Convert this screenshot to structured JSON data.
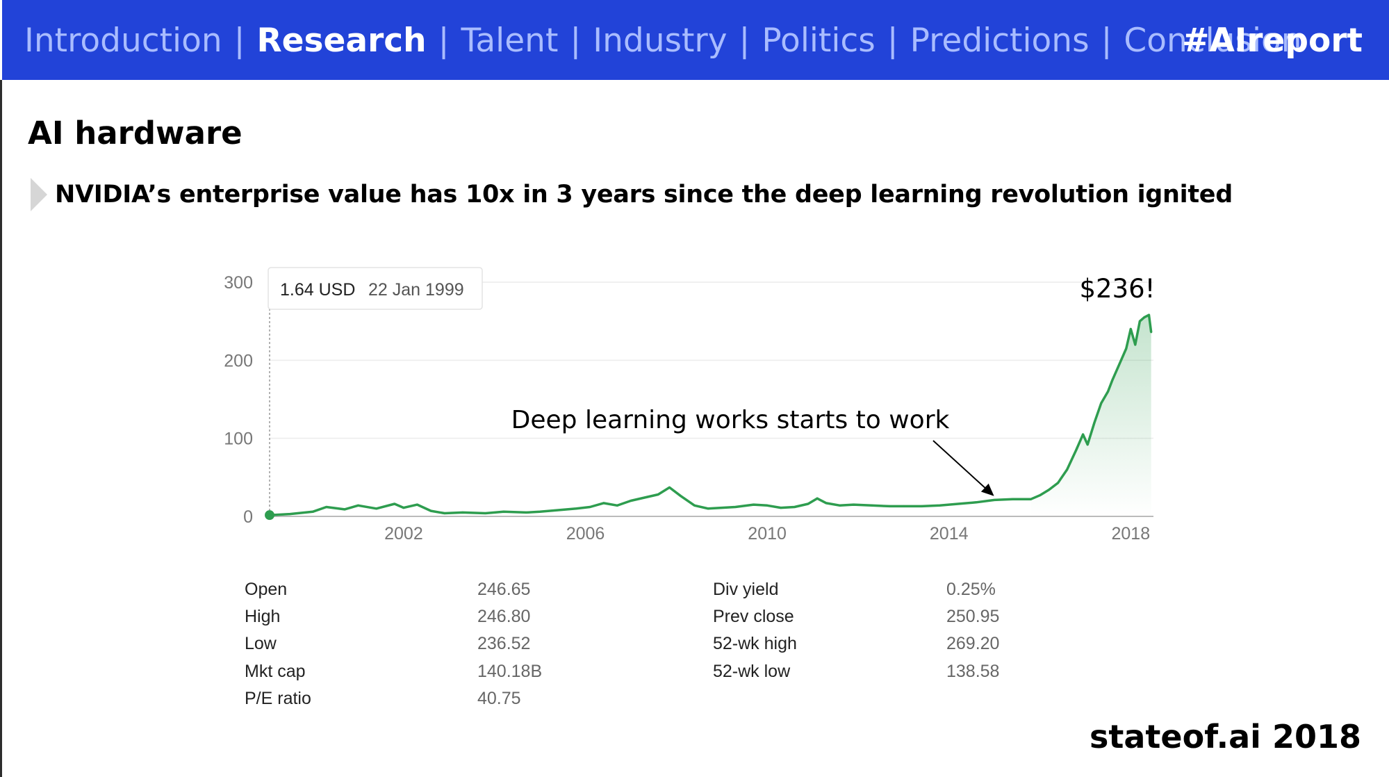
{
  "nav": {
    "items": [
      {
        "label": "Introduction",
        "active": false
      },
      {
        "label": "Research",
        "active": true
      },
      {
        "label": "Talent",
        "active": false
      },
      {
        "label": "Industry",
        "active": false
      },
      {
        "label": "Politics",
        "active": false
      },
      {
        "label": "Predictions",
        "active": false
      },
      {
        "label": "Conclusion",
        "active": false
      }
    ],
    "separator": "|",
    "hashtag": "#AIreport"
  },
  "page": {
    "title": "AI hardware",
    "bullet": "NVIDIA’s enterprise value has 10x in 3 years since the deep learning revolution ignited"
  },
  "colors": {
    "topbar": "#2243d8",
    "nav_inactive": "#a9bcff",
    "line": "#2e9d4f"
  },
  "chart_data": {
    "type": "line",
    "xlabel": "",
    "ylabel": "",
    "ylim": [
      0,
      300
    ],
    "yticks": [
      0,
      100,
      200,
      300
    ],
    "xlim": [
      1999.05,
      2018.5
    ],
    "xticks": [
      2002,
      2006,
      2010,
      2014,
      2018
    ],
    "grid": true,
    "tooltip": {
      "value": "1.64 USD",
      "date": "22 Jan 1999"
    },
    "end_label": "$236!",
    "annotation": "Deep learning works starts to work",
    "annotation_target": [
      2015,
      21
    ],
    "series": [
      {
        "x": [
          1999.05,
          1999.5,
          2000.0,
          2000.3,
          2000.7,
          2001.0,
          2001.4,
          2001.8,
          2002.0,
          2002.3,
          2002.6,
          2002.9,
          2003.3,
          2003.8,
          2004.2,
          2004.7,
          2005.0,
          2005.4,
          2005.8,
          2006.1,
          2006.4,
          2006.7,
          2007.0,
          2007.3,
          2007.6,
          2007.85,
          2008.1,
          2008.4,
          2008.7,
          2009.0,
          2009.3,
          2009.7,
          2010.0,
          2010.3,
          2010.6,
          2010.9,
          2011.1,
          2011.3,
          2011.6,
          2011.9,
          2012.3,
          2012.7,
          2013.0,
          2013.4,
          2013.8,
          2014.2,
          2014.6,
          2015.0,
          2015.4,
          2015.8,
          2016.0,
          2016.2,
          2016.4,
          2016.6,
          2016.8,
          2016.95,
          2017.05,
          2017.2,
          2017.35,
          2017.5,
          2017.6,
          2017.75,
          2017.9,
          2018.0,
          2018.1,
          2018.2,
          2018.3,
          2018.4,
          2018.45
        ],
        "y": [
          1.64,
          3,
          6,
          12,
          9,
          14,
          10,
          16,
          11,
          15,
          7,
          4,
          5,
          4,
          6,
          5,
          6,
          8,
          10,
          12,
          17,
          14,
          20,
          24,
          28,
          37,
          26,
          14,
          10,
          11,
          12,
          15,
          14,
          11,
          12,
          16,
          23,
          17,
          14,
          15,
          14,
          13,
          13,
          13,
          14,
          16,
          18,
          21,
          22,
          22,
          27,
          34,
          43,
          60,
          85,
          105,
          92,
          120,
          145,
          160,
          175,
          195,
          215,
          240,
          220,
          250,
          255,
          258,
          236
        ]
      }
    ]
  },
  "stats": {
    "left": [
      {
        "label": "Open",
        "value": "246.65"
      },
      {
        "label": "High",
        "value": "246.80"
      },
      {
        "label": "Low",
        "value": "236.52"
      },
      {
        "label": "Mkt cap",
        "value": "140.18B"
      },
      {
        "label": "P/E ratio",
        "value": "40.75"
      }
    ],
    "right": [
      {
        "label": "Div yield",
        "value": "0.25%"
      },
      {
        "label": "Prev close",
        "value": "250.95"
      },
      {
        "label": "52-wk high",
        "value": "269.20"
      },
      {
        "label": "52-wk low",
        "value": "138.58"
      }
    ]
  },
  "footer": "stateof.ai 2018"
}
